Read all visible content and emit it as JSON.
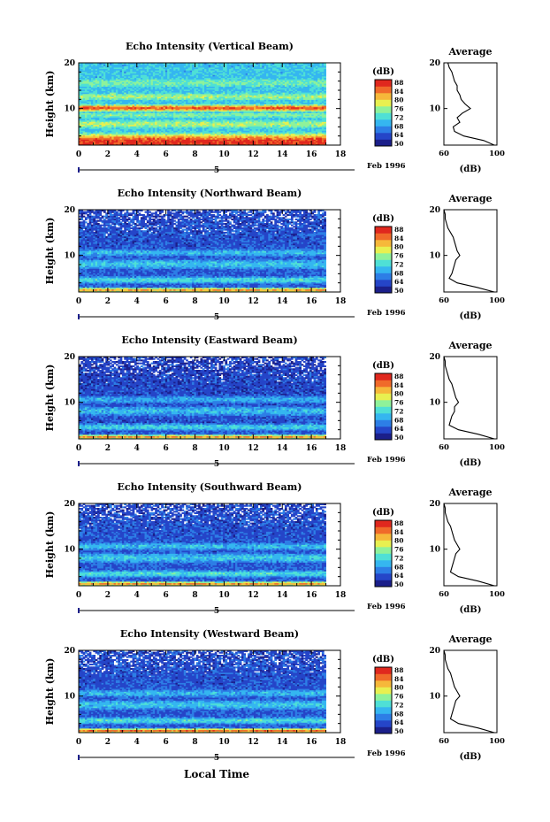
{
  "figure": {
    "xlabel": "Local Time",
    "axis_end_label": "Feb 1996",
    "date_marker": "5",
    "colorbar_unit": "(dB)",
    "colorbar_ticks": [
      "50",
      "64",
      "68",
      "72",
      "76",
      "80",
      "84",
      "88"
    ],
    "average_title": "Average",
    "average_xlabel": "(dB)",
    "colormap": [
      "#1b1f8a",
      "#2545c8",
      "#2d7ee6",
      "#35b6f0",
      "#4fe0d6",
      "#8ff29a",
      "#e8f050",
      "#f6b83a",
      "#f06a2a",
      "#e0281e"
    ]
  },
  "chart_data": [
    {
      "type": "heatmap",
      "title": "Echo Intensity (Vertical Beam)",
      "ylabel": "Height (km)",
      "xlim": [
        0,
        18
      ],
      "ylim": [
        2,
        20
      ],
      "xticks": [
        0,
        2,
        4,
        6,
        8,
        10,
        12,
        14,
        16,
        18
      ],
      "yticks": [
        10,
        20
      ],
      "data_end_hour": 17,
      "bands_km": [
        [
          2.5,
          2.5,
          0.95
        ],
        [
          3.5,
          1.0,
          0.75
        ],
        [
          6.5,
          1.5,
          0.6
        ],
        [
          8.5,
          1.2,
          0.55
        ],
        [
          10.0,
          1.0,
          0.9
        ],
        [
          12.5,
          1.5,
          0.6
        ],
        [
          15.5,
          2.0,
          0.55
        ],
        [
          18.5,
          1.5,
          0.45
        ]
      ],
      "background_level": 0.42,
      "colorbar_ticks": [
        "50",
        "64",
        "68",
        "72",
        "76",
        "80",
        "84",
        "88"
      ],
      "average": {
        "xlim": [
          60,
          100
        ],
        "xticks": [
          60,
          100
        ],
        "yticks": [
          10,
          20
        ],
        "profile": [
          [
            2,
            98
          ],
          [
            3,
            90
          ],
          [
            4,
            75
          ],
          [
            5,
            68
          ],
          [
            6,
            67
          ],
          [
            7,
            72
          ],
          [
            8,
            70
          ],
          [
            9,
            74
          ],
          [
            10,
            80
          ],
          [
            11,
            76
          ],
          [
            12,
            73
          ],
          [
            13,
            72
          ],
          [
            14,
            70
          ],
          [
            15,
            70
          ],
          [
            16,
            68
          ],
          [
            17,
            67
          ],
          [
            18,
            66
          ],
          [
            19,
            64
          ],
          [
            20,
            63
          ]
        ]
      }
    },
    {
      "type": "heatmap",
      "title": "Echo Intensity (Northward Beam)",
      "ylabel": "Height (km)",
      "xlim": [
        0,
        18
      ],
      "ylim": [
        2,
        20
      ],
      "xticks": [
        0,
        2,
        4,
        6,
        8,
        10,
        12,
        14,
        16,
        18
      ],
      "yticks": [
        10,
        20
      ],
      "data_end_hour": 17,
      "bands_km": [
        [
          2.3,
          0.6,
          0.8
        ],
        [
          4.5,
          1.0,
          0.45
        ],
        [
          8.0,
          1.5,
          0.4
        ],
        [
          10.5,
          1.2,
          0.38
        ]
      ],
      "background_level": 0.2,
      "colorbar_ticks": [
        "50",
        "64",
        "68",
        "72",
        "76",
        "80",
        "84",
        "88"
      ],
      "average": {
        "xlim": [
          60,
          100
        ],
        "xticks": [
          60,
          100
        ],
        "yticks": [
          10,
          20
        ],
        "profile": [
          [
            2,
            98
          ],
          [
            3,
            85
          ],
          [
            4,
            70
          ],
          [
            5,
            64
          ],
          [
            6,
            66
          ],
          [
            7,
            67
          ],
          [
            8,
            68
          ],
          [
            9,
            69
          ],
          [
            10,
            72
          ],
          [
            11,
            70
          ],
          [
            12,
            69
          ],
          [
            13,
            68
          ],
          [
            14,
            67
          ],
          [
            15,
            65
          ],
          [
            16,
            63
          ],
          [
            17,
            62
          ],
          [
            18,
            61
          ],
          [
            19,
            61
          ],
          [
            20,
            60
          ]
        ]
      }
    },
    {
      "type": "heatmap",
      "title": "Echo Intensity (Eastward Beam)",
      "ylabel": "Height (km)",
      "xlim": [
        0,
        18
      ],
      "ylim": [
        2,
        20
      ],
      "xticks": [
        0,
        2,
        4,
        6,
        8,
        10,
        12,
        14,
        16,
        18
      ],
      "yticks": [
        10,
        20
      ],
      "data_end_hour": 17,
      "bands_km": [
        [
          2.3,
          0.6,
          0.8
        ],
        [
          4.5,
          1.0,
          0.42
        ],
        [
          8.0,
          1.5,
          0.38
        ],
        [
          10.5,
          1.2,
          0.36
        ]
      ],
      "background_level": 0.18,
      "colorbar_ticks": [
        "50",
        "64",
        "68",
        "72",
        "76",
        "80",
        "84",
        "88"
      ],
      "average": {
        "xlim": [
          60,
          100
        ],
        "xticks": [
          60,
          100
        ],
        "yticks": [
          10,
          20
        ],
        "profile": [
          [
            2,
            98
          ],
          [
            3,
            86
          ],
          [
            4,
            71
          ],
          [
            5,
            64
          ],
          [
            6,
            65
          ],
          [
            7,
            66
          ],
          [
            8,
            68
          ],
          [
            9,
            68
          ],
          [
            10,
            71
          ],
          [
            11,
            69
          ],
          [
            12,
            68
          ],
          [
            13,
            67
          ],
          [
            14,
            66
          ],
          [
            15,
            64
          ],
          [
            16,
            63
          ],
          [
            17,
            62
          ],
          [
            18,
            61
          ],
          [
            19,
            61
          ],
          [
            20,
            60
          ]
        ]
      }
    },
    {
      "type": "heatmap",
      "title": "Echo Intensity (Southward Beam)",
      "ylabel": "Height (km)",
      "xlim": [
        0,
        18
      ],
      "ylim": [
        2,
        20
      ],
      "xticks": [
        0,
        2,
        4,
        6,
        8,
        10,
        12,
        14,
        16,
        18
      ],
      "yticks": [
        10,
        20
      ],
      "data_end_hour": 17,
      "bands_km": [
        [
          2.3,
          0.6,
          0.8
        ],
        [
          4.5,
          1.0,
          0.45
        ],
        [
          8.0,
          1.5,
          0.4
        ],
        [
          10.5,
          1.2,
          0.38
        ]
      ],
      "background_level": 0.2,
      "colorbar_ticks": [
        "50",
        "64",
        "68",
        "72",
        "76",
        "80",
        "84",
        "88"
      ],
      "average": {
        "xlim": [
          60,
          100
        ],
        "xticks": [
          60,
          100
        ],
        "yticks": [
          10,
          20
        ],
        "profile": [
          [
            2,
            98
          ],
          [
            3,
            86
          ],
          [
            4,
            71
          ],
          [
            5,
            65
          ],
          [
            6,
            66
          ],
          [
            7,
            67
          ],
          [
            8,
            68
          ],
          [
            9,
            69
          ],
          [
            10,
            72
          ],
          [
            11,
            70
          ],
          [
            12,
            68
          ],
          [
            13,
            67
          ],
          [
            14,
            66
          ],
          [
            15,
            65
          ],
          [
            16,
            63
          ],
          [
            17,
            62
          ],
          [
            18,
            61
          ],
          [
            19,
            61
          ],
          [
            20,
            60
          ]
        ]
      }
    },
    {
      "type": "heatmap",
      "title": "Echo Intensity (Westward Beam)",
      "ylabel": "Height (km)",
      "xlim": [
        0,
        18
      ],
      "ylim": [
        2,
        20
      ],
      "xticks": [
        0,
        2,
        4,
        6,
        8,
        10,
        12,
        14,
        16,
        18
      ],
      "yticks": [
        10,
        20
      ],
      "data_end_hour": 17,
      "bands_km": [
        [
          2.3,
          0.6,
          0.85
        ],
        [
          4.5,
          1.0,
          0.45
        ],
        [
          8.0,
          1.5,
          0.4
        ],
        [
          10.5,
          1.2,
          0.38
        ]
      ],
      "background_level": 0.2,
      "colorbar_ticks": [
        "50",
        "64",
        "68",
        "72",
        "76",
        "80",
        "84",
        "88"
      ],
      "average": {
        "xlim": [
          60,
          100
        ],
        "xticks": [
          60,
          100
        ],
        "yticks": [
          10,
          20
        ],
        "profile": [
          [
            2,
            98
          ],
          [
            3,
            86
          ],
          [
            4,
            71
          ],
          [
            5,
            65
          ],
          [
            6,
            66
          ],
          [
            7,
            67
          ],
          [
            8,
            68
          ],
          [
            9,
            69
          ],
          [
            10,
            72
          ],
          [
            11,
            70
          ],
          [
            12,
            68
          ],
          [
            13,
            67
          ],
          [
            14,
            66
          ],
          [
            15,
            65
          ],
          [
            16,
            63
          ],
          [
            17,
            62
          ],
          [
            18,
            61
          ],
          [
            19,
            61
          ],
          [
            20,
            60
          ]
        ]
      }
    }
  ]
}
